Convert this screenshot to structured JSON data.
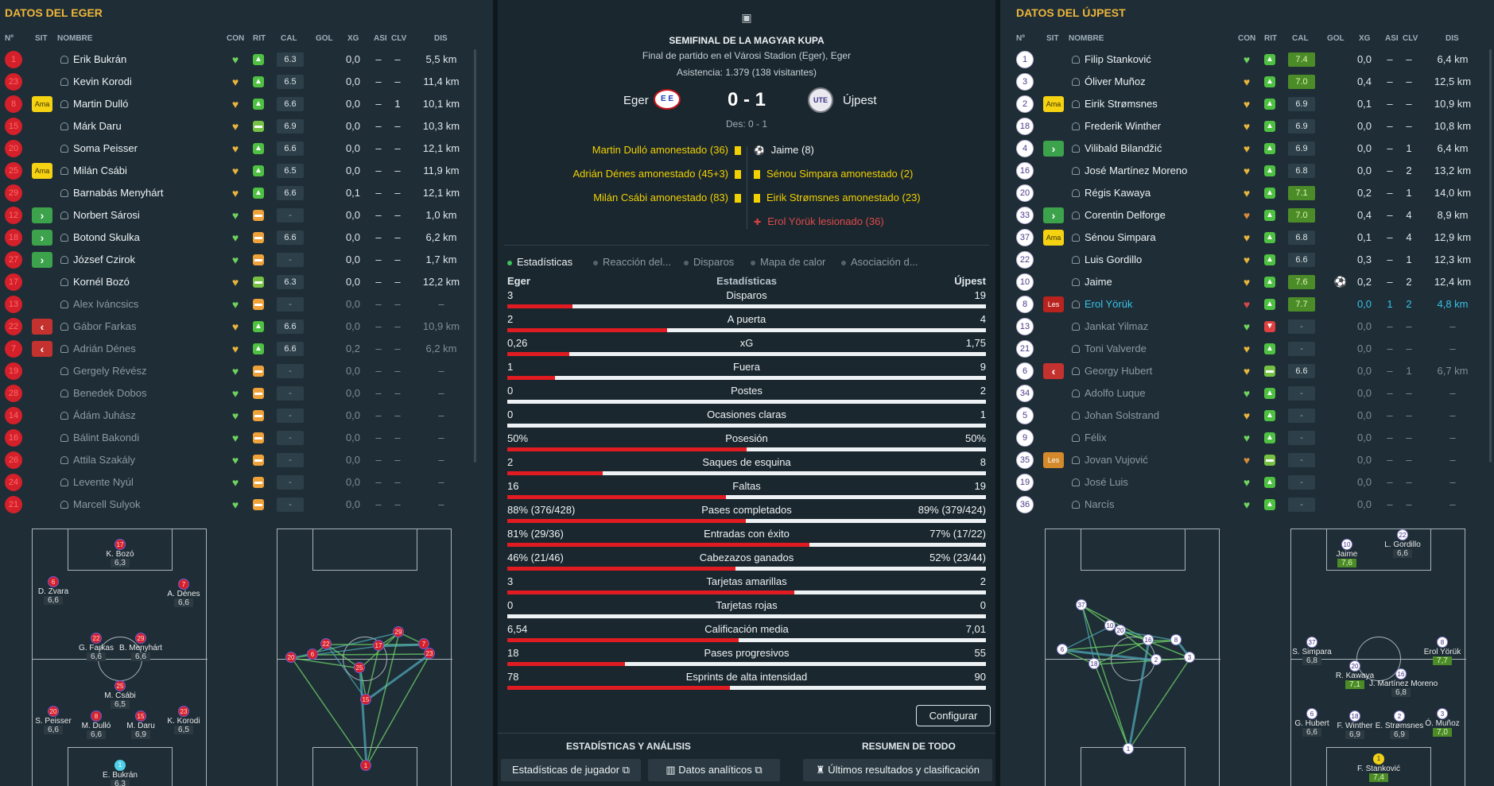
{
  "colors": {
    "home": "#d4202a",
    "away": "#ffffff",
    "accent": "#f0b63a",
    "positive": "#4fc142"
  },
  "columns": [
    "Nº",
    "SIT",
    "NOMBRE",
    "CON",
    "RIT",
    "CAL",
    "GOL",
    "XG",
    "ASI",
    "CLV",
    "DIS"
  ],
  "home": {
    "title": "DATOS DEL EGER",
    "players": [
      {
        "num": "1",
        "sit": "",
        "name": "Erik Bukrán",
        "con": "green",
        "rit": "up",
        "cal": "6.3",
        "gol": "",
        "xg": "0,0",
        "asi": "–",
        "clv": "–",
        "dis": "5,5 km"
      },
      {
        "num": "23",
        "sit": "",
        "name": "Kevin Korodi",
        "con": "yellow",
        "rit": "up",
        "cal": "6.5",
        "gol": "",
        "xg": "0,0",
        "asi": "–",
        "clv": "–",
        "dis": "11,4 km"
      },
      {
        "num": "8",
        "sit": "Ama",
        "name": "Martin Dulló",
        "con": "yellow",
        "rit": "up",
        "cal": "6.6",
        "gol": "",
        "xg": "0,0",
        "asi": "–",
        "clv": "1",
        "dis": "10,1 km"
      },
      {
        "num": "15",
        "sit": "",
        "name": "Márk Daru",
        "con": "yellow",
        "rit": "flatg",
        "cal": "6.9",
        "gol": "",
        "xg": "0,0",
        "asi": "–",
        "clv": "–",
        "dis": "10,3 km"
      },
      {
        "num": "20",
        "sit": "",
        "name": "Soma Peisser",
        "con": "yellow",
        "rit": "up",
        "cal": "6.6",
        "gol": "",
        "xg": "0,0",
        "asi": "–",
        "clv": "–",
        "dis": "12,1 km"
      },
      {
        "num": "25",
        "sit": "Ama",
        "name": "Milán Csábi",
        "con": "yellow",
        "rit": "up",
        "cal": "6.5",
        "gol": "",
        "xg": "0,0",
        "asi": "–",
        "clv": "–",
        "dis": "11,9 km"
      },
      {
        "num": "29",
        "sit": "",
        "name": "Barnabás Menyhárt",
        "con": "yellow",
        "rit": "up",
        "cal": "6.6",
        "gol": "",
        "xg": "0,1",
        "asi": "–",
        "clv": "–",
        "dis": "12,1 km"
      },
      {
        "num": "12",
        "sit": "in",
        "name": "Norbert Sárosi",
        "con": "green",
        "rit": "flat",
        "cal": "-",
        "gol": "",
        "xg": "0,0",
        "asi": "–",
        "clv": "–",
        "dis": "1,0 km"
      },
      {
        "num": "18",
        "sit": "in",
        "name": "Botond Skulka",
        "con": "green",
        "rit": "flat",
        "cal": "6.6",
        "gol": "",
        "xg": "0,0",
        "asi": "–",
        "clv": "–",
        "dis": "6,2 km"
      },
      {
        "num": "27",
        "sit": "in",
        "name": "József Czirok",
        "con": "green",
        "rit": "flat",
        "cal": "-",
        "gol": "",
        "xg": "0,0",
        "asi": "–",
        "clv": "–",
        "dis": "1,7 km"
      },
      {
        "num": "17",
        "sit": "",
        "name": "Kornél Bozó",
        "con": "yellow",
        "rit": "flatg",
        "cal": "6.3",
        "gol": "",
        "xg": "0,0",
        "asi": "–",
        "clv": "–",
        "dis": "12,2 km"
      },
      {
        "num": "13",
        "sit": "",
        "name": "Alex Iváncsics",
        "con": "green",
        "rit": "flat",
        "cal": "-",
        "gol": "",
        "xg": "0,0",
        "asi": "–",
        "clv": "–",
        "dis": "–",
        "dim": true
      },
      {
        "num": "22",
        "sit": "out",
        "name": "Gábor Farkas",
        "con": "yellow",
        "rit": "up",
        "cal": "6.6",
        "gol": "",
        "xg": "0,0",
        "asi": "–",
        "clv": "–",
        "dis": "10,9 km",
        "dim": true
      },
      {
        "num": "7",
        "sit": "out",
        "name": "Adrián Dénes",
        "con": "yellow",
        "rit": "up",
        "cal": "6.6",
        "gol": "",
        "xg": "0,2",
        "asi": "–",
        "clv": "–",
        "dis": "6,2 km",
        "dim": true
      },
      {
        "num": "19",
        "sit": "",
        "name": "Gergely Révész",
        "con": "green",
        "rit": "flat",
        "cal": "-",
        "gol": "",
        "xg": "0,0",
        "asi": "–",
        "clv": "–",
        "dis": "–",
        "dim": true
      },
      {
        "num": "28",
        "sit": "",
        "name": "Benedek Dobos",
        "con": "green",
        "rit": "flat",
        "cal": "-",
        "gol": "",
        "xg": "0,0",
        "asi": "–",
        "clv": "–",
        "dis": "–",
        "dim": true
      },
      {
        "num": "14",
        "sit": "",
        "name": "Ádám Juhász",
        "con": "green",
        "rit": "flat",
        "cal": "-",
        "gol": "",
        "xg": "0,0",
        "asi": "–",
        "clv": "–",
        "dis": "–",
        "dim": true
      },
      {
        "num": "16",
        "sit": "",
        "name": "Bálint Bakondi",
        "con": "green",
        "rit": "flat",
        "cal": "-",
        "gol": "",
        "xg": "0,0",
        "asi": "–",
        "clv": "–",
        "dis": "–",
        "dim": true
      },
      {
        "num": "26",
        "sit": "",
        "name": "Attila Szakály",
        "con": "green",
        "rit": "flat",
        "cal": "-",
        "gol": "",
        "xg": "0,0",
        "asi": "–",
        "clv": "–",
        "dis": "–",
        "dim": true
      },
      {
        "num": "24",
        "sit": "",
        "name": "Levente Nyúl",
        "con": "green",
        "rit": "flat",
        "cal": "-",
        "gol": "",
        "xg": "0,0",
        "asi": "–",
        "clv": "–",
        "dis": "–",
        "dim": true
      },
      {
        "num": "21",
        "sit": "",
        "name": "Marcell Sulyok",
        "con": "green",
        "rit": "flat",
        "cal": "-",
        "gol": "",
        "xg": "0,0",
        "asi": "–",
        "clv": "–",
        "dis": "–",
        "dim": true
      }
    ],
    "formation": [
      {
        "num": "17",
        "name": "K. Bozó",
        "rating": "6,3"
      },
      {
        "num": "6",
        "name": "D. Zvara",
        "rating": "6,6"
      },
      {
        "num": "7",
        "name": "A. Dénes",
        "rating": "6,6"
      },
      {
        "num": "22",
        "name": "G. Farkas",
        "rating": "6,6"
      },
      {
        "num": "29",
        "name": "B. Menyhárt",
        "rating": "6,6"
      },
      {
        "num": "25",
        "name": "M. Csábi",
        "rating": "6,5"
      },
      {
        "num": "20",
        "name": "S. Peisser",
        "rating": "6,6"
      },
      {
        "num": "8",
        "name": "M. Dulló",
        "rating": "6,6"
      },
      {
        "num": "15",
        "name": "M. Daru",
        "rating": "6,9"
      },
      {
        "num": "23",
        "name": "K. Korodi",
        "rating": "6,5"
      },
      {
        "num": "1",
        "name": "E. Bukrán",
        "rating": "6,3"
      }
    ],
    "passmap_nodes": [
      "20",
      "6",
      "22",
      "25",
      "15",
      "17",
      "29",
      "7",
      "23",
      "1"
    ]
  },
  "away": {
    "title": "DATOS DEL ÚJPEST",
    "players": [
      {
        "num": "1",
        "sit": "",
        "name": "Filip Stanković",
        "con": "green",
        "rit": "up",
        "cal": "7.4",
        "green": true,
        "gol": "",
        "xg": "0,0",
        "asi": "–",
        "clv": "–",
        "dis": "6,4 km"
      },
      {
        "num": "3",
        "sit": "",
        "name": "Óliver Muñoz",
        "con": "yellow",
        "rit": "up",
        "cal": "7.0",
        "green": true,
        "gol": "",
        "xg": "0,4",
        "asi": "–",
        "clv": "–",
        "dis": "12,5 km"
      },
      {
        "num": "2",
        "sit": "Ama",
        "name": "Eirik Strømsnes",
        "con": "yellow",
        "rit": "up",
        "cal": "6.9",
        "gol": "",
        "xg": "0,1",
        "asi": "–",
        "clv": "–",
        "dis": "10,9 km"
      },
      {
        "num": "18",
        "sit": "",
        "name": "Frederik Winther",
        "con": "yellow",
        "rit": "up",
        "cal": "6.9",
        "gol": "",
        "xg": "0,0",
        "asi": "–",
        "clv": "–",
        "dis": "10,8 km"
      },
      {
        "num": "4",
        "sit": "in",
        "name": "Vilibald Bilandžić",
        "con": "yellow",
        "rit": "up",
        "cal": "6.9",
        "gol": "",
        "xg": "0,0",
        "asi": "–",
        "clv": "1",
        "dis": "6,4 km"
      },
      {
        "num": "16",
        "sit": "",
        "name": "José Martínez Moreno",
        "con": "yellow",
        "rit": "up",
        "cal": "6.8",
        "gol": "",
        "xg": "0,0",
        "asi": "–",
        "clv": "2",
        "dis": "13,2 km"
      },
      {
        "num": "20",
        "sit": "",
        "name": "Régis Kawaya",
        "con": "yellow",
        "rit": "up",
        "cal": "7.1",
        "green": true,
        "gol": "",
        "xg": "0,2",
        "asi": "–",
        "clv": "1",
        "dis": "14,0 km"
      },
      {
        "num": "33",
        "sit": "in",
        "name": "Corentin Delforge",
        "con": "orange",
        "rit": "up",
        "cal": "7.0",
        "green": true,
        "gol": "",
        "xg": "0,4",
        "asi": "–",
        "clv": "4",
        "dis": "8,9 km"
      },
      {
        "num": "37",
        "sit": "Ama",
        "name": "Sénou Simpara",
        "con": "yellow",
        "rit": "up",
        "cal": "6.8",
        "gol": "",
        "xg": "0,1",
        "asi": "–",
        "clv": "4",
        "dis": "12,9 km"
      },
      {
        "num": "22",
        "sit": "",
        "name": "Luis Gordillo",
        "con": "yellow",
        "rit": "up",
        "cal": "6.6",
        "gol": "",
        "xg": "0,3",
        "asi": "–",
        "clv": "1",
        "dis": "12,3 km"
      },
      {
        "num": "10",
        "sit": "",
        "name": "Jaime",
        "con": "yellow",
        "rit": "up",
        "cal": "7.6",
        "green": true,
        "gol": "⚽",
        "xg": "0,2",
        "asi": "–",
        "clv": "2",
        "dis": "12,4 km"
      },
      {
        "num": "8",
        "sit": "Les",
        "name": "Erol Yörük",
        "con": "red",
        "rit": "up",
        "cal": "7.7",
        "green": true,
        "gol": "",
        "xg": "0,0",
        "asi": "1",
        "clv": "2",
        "dis": "4,8 km",
        "hl": true
      },
      {
        "num": "13",
        "sit": "",
        "name": "Jankat Yilmaz",
        "con": "green",
        "rit": "down",
        "cal": "-",
        "gol": "",
        "xg": "0,0",
        "asi": "–",
        "clv": "–",
        "dis": "–",
        "dim": true
      },
      {
        "num": "21",
        "sit": "",
        "name": "Toni Valverde",
        "con": "yellow",
        "rit": "up",
        "cal": "-",
        "gol": "",
        "xg": "0,0",
        "asi": "–",
        "clv": "–",
        "dis": "–",
        "dim": true
      },
      {
        "num": "6",
        "sit": "out",
        "name": "Georgy Hubert",
        "con": "yellow",
        "rit": "flatg",
        "cal": "6.6",
        "gol": "",
        "xg": "0,0",
        "asi": "–",
        "clv": "1",
        "dis": "6,7 km",
        "dim": true
      },
      {
        "num": "34",
        "sit": "",
        "name": "Adolfo Luque",
        "con": "green",
        "rit": "up",
        "cal": "-",
        "gol": "",
        "xg": "0,0",
        "asi": "–",
        "clv": "–",
        "dis": "–",
        "dim": true
      },
      {
        "num": "5",
        "sit": "",
        "name": "Johan Solstrand",
        "con": "yellow",
        "rit": "up",
        "cal": "-",
        "gol": "",
        "xg": "0,0",
        "asi": "–",
        "clv": "–",
        "dis": "–",
        "dim": true
      },
      {
        "num": "9",
        "sit": "",
        "name": "Félix",
        "con": "green",
        "rit": "up",
        "cal": "-",
        "gol": "",
        "xg": "0,0",
        "asi": "–",
        "clv": "–",
        "dis": "–",
        "dim": true
      },
      {
        "num": "35",
        "sit": "Les2",
        "name": "Jovan Vujović",
        "con": "orange",
        "rit": "flatg",
        "cal": "-",
        "gol": "",
        "xg": "0,0",
        "asi": "–",
        "clv": "–",
        "dis": "–",
        "dim": true
      },
      {
        "num": "19",
        "sit": "",
        "name": "José Luis",
        "con": "green",
        "rit": "up",
        "cal": "-",
        "gol": "",
        "xg": "0,0",
        "asi": "–",
        "clv": "–",
        "dis": "–",
        "dim": true
      },
      {
        "num": "36",
        "sit": "",
        "name": "Narcís",
        "con": "green",
        "rit": "up",
        "cal": "-",
        "gol": "",
        "xg": "0,0",
        "asi": "–",
        "clv": "–",
        "dis": "–",
        "dim": true
      }
    ],
    "sit_labels": {
      "Ama": "Ama",
      "Les": "Les",
      "Les2": "Les"
    },
    "formation": [
      {
        "num": "10",
        "name": "Jaime",
        "rating": "7,6",
        "green": true
      },
      {
        "num": "22",
        "name": "L. Gordillo",
        "rating": "6,6"
      },
      {
        "num": "37",
        "name": "S. Simpara",
        "rating": "6,8"
      },
      {
        "num": "8",
        "name": "Erol Yörük",
        "rating": "7,7",
        "green": true
      },
      {
        "num": "20",
        "name": "R. Kawaya",
        "rating": "7,1",
        "green": true
      },
      {
        "num": "16",
        "name": "J. Martínez Moreno",
        "rating": "6,8"
      },
      {
        "num": "6",
        "name": "G. Hubert",
        "rating": "6,6"
      },
      {
        "num": "18",
        "name": "F. Winther",
        "rating": "6,9"
      },
      {
        "num": "2",
        "name": "E. Strømsnes",
        "rating": "6,9"
      },
      {
        "num": "3",
        "name": "Ó. Muñoz",
        "rating": "7,0",
        "green": true
      },
      {
        "num": "1",
        "name": "F. Stanković",
        "rating": "7,4",
        "green": true
      }
    ],
    "passmap_nodes": [
      "37",
      "10",
      "20",
      "16",
      "8",
      "6",
      "18",
      "2",
      "3",
      "1"
    ]
  },
  "match": {
    "competition": "SEMIFINAL DE LA MAGYAR KUPA",
    "venue": "Final de partido en el Városi Stadion (Eger), Eger",
    "attendance": "Asistencia: 1.379 (138 visitantes)",
    "home_team": "Eger",
    "away_team": "Újpest",
    "score": "0 - 1",
    "halftime": "Des: 0 - 1",
    "home_events": [
      "Martin Dulló amonestado (36)",
      "Adrián Dénes amonestado (45+3)",
      "Milán Csábi amonestado (83)"
    ],
    "away_events": [
      {
        "text": "Jaime (8)",
        "type": "goal"
      },
      {
        "text": "Sénou Simpara amonestado (2)",
        "type": "yellow"
      },
      {
        "text": "Eirik Strømsnes amonestado (23)",
        "type": "yellow"
      },
      {
        "text": "Erol Yörük lesionado (36)",
        "type": "injury"
      }
    ]
  },
  "tabs": [
    "Estadísticas",
    "Reacción del...",
    "Disparos",
    "Mapa de calor",
    "Asociación d..."
  ],
  "stats_header": {
    "home": "Eger",
    "title": "Estadísticas",
    "away": "Újpest"
  },
  "chart_data": {
    "type": "bar",
    "title": "Estadísticas",
    "categories": [
      "Disparos",
      "A puerta",
      "xG",
      "Fuera",
      "Postes",
      "Ocasiones claras",
      "Posesión",
      "Saques de esquina",
      "Faltas",
      "Pases completados",
      "Entradas con éxito",
      "Cabezazos ganados",
      "Tarjetas amarillas",
      "Tarjetas rojas",
      "Calificación media",
      "Pases progresivos",
      "Esprints de alta intensidad"
    ],
    "series": [
      {
        "name": "Eger",
        "labels": [
          "3",
          "2",
          "0,26",
          "1",
          "0",
          "0",
          "50%",
          "2",
          "16",
          "88% (376/428)",
          "81% (29/36)",
          "46% (21/46)",
          "3",
          "0",
          "6,54",
          "18",
          "78"
        ],
        "values": [
          3,
          2,
          0.26,
          1,
          0,
          0,
          50,
          2,
          16,
          376,
          29,
          21,
          3,
          0,
          6.54,
          18,
          78
        ]
      },
      {
        "name": "Újpest",
        "labels": [
          "19",
          "4",
          "1,75",
          "9",
          "2",
          "1",
          "50%",
          "8",
          "19",
          "89% (379/424)",
          "77% (17/22)",
          "52% (23/44)",
          "2",
          "0",
          "7,01",
          "55",
          "90"
        ],
        "values": [
          19,
          4,
          1.75,
          9,
          2,
          1,
          50,
          8,
          19,
          379,
          17,
          23,
          2,
          0,
          7.01,
          55,
          90
        ]
      }
    ]
  },
  "buttons": {
    "configure": "Configurar",
    "section_left": "ESTADÍSTICAS Y ANÁLISIS",
    "section_right": "RESUMEN DE TODO",
    "player_stats": "Estadísticas de jugador",
    "analytics": "Datos analíticos",
    "results": "Últimos resultados y clasificación"
  }
}
